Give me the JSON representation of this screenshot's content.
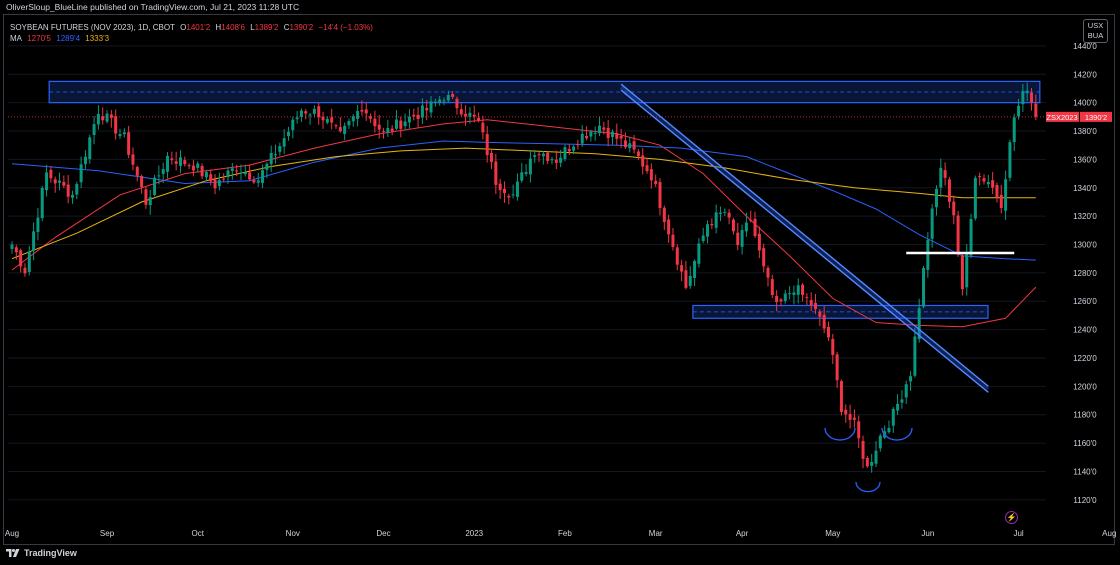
{
  "header": {
    "published": "OliverSloup_BlueLine published on TradingView.com, Jul 21, 2023 11:28 UTC"
  },
  "legend": {
    "title": "SOYBEAN FUTURES (NOV 2023), 1D, CBOT",
    "o_label": "O",
    "o_value": "1401'2",
    "h_label": "H",
    "h_value": "1408'6",
    "l_label": "L",
    "l_value": "1389'2",
    "c_label": "C",
    "c_value": "1390'2",
    "change": "−14'4 (−1.03%)",
    "ma_label": "MA",
    "ma_values": [
      "1270'5",
      "1289'4",
      "1333'3"
    ]
  },
  "unit_box": {
    "line1": "USX",
    "line2": "BUA"
  },
  "footer": {
    "brand": "TradingView"
  },
  "colors": {
    "up": "#089981",
    "down": "#f23645",
    "ma_short": "#f23645",
    "ma_mid": "#2962ff",
    "ma_long": "#e8b50f",
    "zone": "#2962ff",
    "background": "#000000",
    "grid": "#131722"
  },
  "icons": {
    "logo": "tradingview-logo-icon",
    "bolt": "lightning-bolt-icon"
  },
  "chart_data": {
    "type": "candlestick",
    "symbol_tag": "ZSX2023",
    "last_price": "1390'2",
    "y_axis": {
      "ylim": [
        1110,
        1447
      ],
      "ticks": [
        1120,
        1140,
        1160,
        1180,
        1200,
        1220,
        1240,
        1260,
        1280,
        1300,
        1320,
        1340,
        1360,
        1380,
        1400,
        1420,
        1440
      ],
      "tick_labels": [
        "1120'0",
        "1140'0",
        "1160'0",
        "1180'0",
        "1200'0",
        "1220'0",
        "1240'0",
        "1260'0",
        "1280'0",
        "1300'0",
        "1320'0",
        "1340'0",
        "1360'0",
        "1380'0",
        "1400'0",
        "1420'0",
        "1440'0"
      ]
    },
    "x_axis": {
      "labels": [
        "Aug",
        "Sep",
        "Oct",
        "Nov",
        "Dec",
        "2023",
        "Feb",
        "Mar",
        "Apr",
        "May",
        "Jun",
        "Jul",
        "Aug"
      ],
      "positions": [
        0,
        22,
        43,
        65,
        86,
        107,
        128,
        149,
        169,
        190,
        212,
        233,
        254
      ]
    },
    "trading_days": 246,
    "anchors": [
      [
        0,
        1300
      ],
      [
        3,
        1282
      ],
      [
        8,
        1350
      ],
      [
        14,
        1335
      ],
      [
        20,
        1395
      ],
      [
        26,
        1375
      ],
      [
        31,
        1330
      ],
      [
        36,
        1362
      ],
      [
        42,
        1356
      ],
      [
        47,
        1342
      ],
      [
        52,
        1355
      ],
      [
        57,
        1346
      ],
      [
        62,
        1370
      ],
      [
        67,
        1395
      ],
      [
        71,
        1393
      ],
      [
        76,
        1376
      ],
      [
        81,
        1398
      ],
      [
        86,
        1378
      ],
      [
        91,
        1388
      ],
      [
        96,
        1395
      ],
      [
        100,
        1405
      ],
      [
        104,
        1396
      ],
      [
        108,
        1386
      ],
      [
        112,
        1345
      ],
      [
        116,
        1335
      ],
      [
        121,
        1367
      ],
      [
        126,
        1360
      ],
      [
        131,
        1375
      ],
      [
        136,
        1384
      ],
      [
        140,
        1375
      ],
      [
        144,
        1365
      ],
      [
        148,
        1349
      ],
      [
        152,
        1310
      ],
      [
        156,
        1270
      ],
      [
        161,
        1315
      ],
      [
        165,
        1323
      ],
      [
        168,
        1300
      ],
      [
        171,
        1318
      ],
      [
        174,
        1282
      ],
      [
        177,
        1255
      ],
      [
        181,
        1270
      ],
      [
        185,
        1258
      ],
      [
        189,
        1235
      ],
      [
        192,
        1186
      ],
      [
        195,
        1172
      ],
      [
        198,
        1142
      ],
      [
        201,
        1165
      ],
      [
        204,
        1180
      ],
      [
        208,
        1210
      ],
      [
        212,
        1305
      ],
      [
        215,
        1355
      ],
      [
        218,
        1322
      ],
      [
        220,
        1265
      ],
      [
        223,
        1350
      ],
      [
        226,
        1345
      ],
      [
        229,
        1330
      ],
      [
        232,
        1390
      ],
      [
        235,
        1412
      ],
      [
        237,
        1390
      ]
    ],
    "moving_averages": [
      {
        "name": "MA",
        "value": "1270'5",
        "color": "#f23645",
        "points": [
          [
            0,
            1282
          ],
          [
            10,
            1305
          ],
          [
            25,
            1335
          ],
          [
            40,
            1350
          ],
          [
            55,
            1356
          ],
          [
            70,
            1368
          ],
          [
            85,
            1378
          ],
          [
            100,
            1385
          ],
          [
            110,
            1388
          ],
          [
            125,
            1383
          ],
          [
            140,
            1378
          ],
          [
            150,
            1370
          ],
          [
            160,
            1350
          ],
          [
            170,
            1320
          ],
          [
            180,
            1292
          ],
          [
            190,
            1262
          ],
          [
            200,
            1245
          ],
          [
            210,
            1243
          ],
          [
            220,
            1242
          ],
          [
            230,
            1248
          ],
          [
            237,
            1270
          ]
        ]
      },
      {
        "name": "MA",
        "value": "1289'4",
        "color": "#2962ff",
        "points": [
          [
            0,
            1357
          ],
          [
            20,
            1352
          ],
          [
            40,
            1343
          ],
          [
            55,
            1345
          ],
          [
            70,
            1358
          ],
          [
            85,
            1368
          ],
          [
            100,
            1373
          ],
          [
            110,
            1372
          ],
          [
            125,
            1371
          ],
          [
            140,
            1370
          ],
          [
            155,
            1368
          ],
          [
            170,
            1362
          ],
          [
            180,
            1350
          ],
          [
            190,
            1338
          ],
          [
            200,
            1325
          ],
          [
            210,
            1307
          ],
          [
            220,
            1292
          ],
          [
            230,
            1290
          ],
          [
            237,
            1289
          ]
        ]
      },
      {
        "name": "MA",
        "value": "1333'3",
        "color": "#e8b50f",
        "points": [
          [
            0,
            1290
          ],
          [
            15,
            1308
          ],
          [
            30,
            1330
          ],
          [
            45,
            1345
          ],
          [
            60,
            1355
          ],
          [
            75,
            1362
          ],
          [
            90,
            1366
          ],
          [
            105,
            1368
          ],
          [
            120,
            1366
          ],
          [
            135,
            1364
          ],
          [
            150,
            1360
          ],
          [
            165,
            1354
          ],
          [
            180,
            1346
          ],
          [
            195,
            1340
          ],
          [
            210,
            1336
          ],
          [
            220,
            1333
          ],
          [
            237,
            1333
          ]
        ]
      }
    ],
    "annotations": {
      "resistance_zone": {
        "x": [
          10,
          237
        ],
        "y": [
          1400,
          1415
        ]
      },
      "support_zone": {
        "x": [
          159,
          225
        ],
        "y": [
          1248,
          1257
        ]
      },
      "trendline": {
        "from": [
          141,
          1413
        ],
        "to": [
          226,
          1200
        ]
      },
      "neckline": {
        "x": [
          207,
          232
        ],
        "y": 1294
      },
      "current_price_line": 1390
    }
  }
}
